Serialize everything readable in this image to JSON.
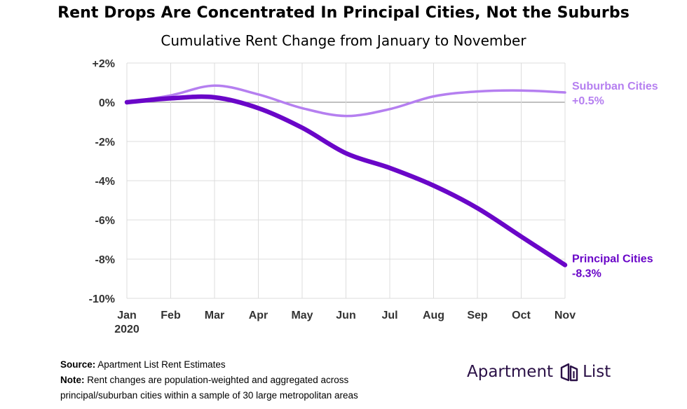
{
  "chart_data": {
    "type": "line",
    "title": "Rent Drops Are Concentrated In Principal Cities, Not the Suburbs",
    "subtitle": "Cumulative Rent Change from January to November",
    "x": [
      "Jan",
      "Feb",
      "Mar",
      "Apr",
      "May",
      "Jun",
      "Jul",
      "Aug",
      "Sep",
      "Oct",
      "Nov"
    ],
    "x_year_label": "2020",
    "y_ticks": [
      "+2%",
      "0%",
      "-2%",
      "-4%",
      "-6%",
      "-8%",
      "-10%"
    ],
    "ylim": [
      -10,
      2
    ],
    "grid": true,
    "series": [
      {
        "name": "Suburban Cities",
        "end_label": "+0.5%",
        "color": "#b57ff0",
        "values": [
          0.0,
          0.35,
          0.85,
          0.4,
          -0.3,
          -0.7,
          -0.35,
          0.3,
          0.55,
          0.6,
          0.5
        ]
      },
      {
        "name": "Principal Cities",
        "end_label": "-8.3%",
        "color": "#6a06c8",
        "values": [
          0.0,
          0.2,
          0.25,
          -0.3,
          -1.3,
          -2.6,
          -3.35,
          -4.25,
          -5.4,
          -6.85,
          -8.3
        ]
      }
    ]
  },
  "footnotes": {
    "source_label": "Source:",
    "source_text": "Apartment List Rent Estimates",
    "note_label": "Note:",
    "note_text": "Rent changes are population-weighted and aggregated across",
    "note_text_2": "principal/suburban cities within a sample of 30 large metropolitan areas"
  },
  "brand": {
    "word1": "Apartment",
    "word2": "List",
    "icon": "building-icon"
  }
}
